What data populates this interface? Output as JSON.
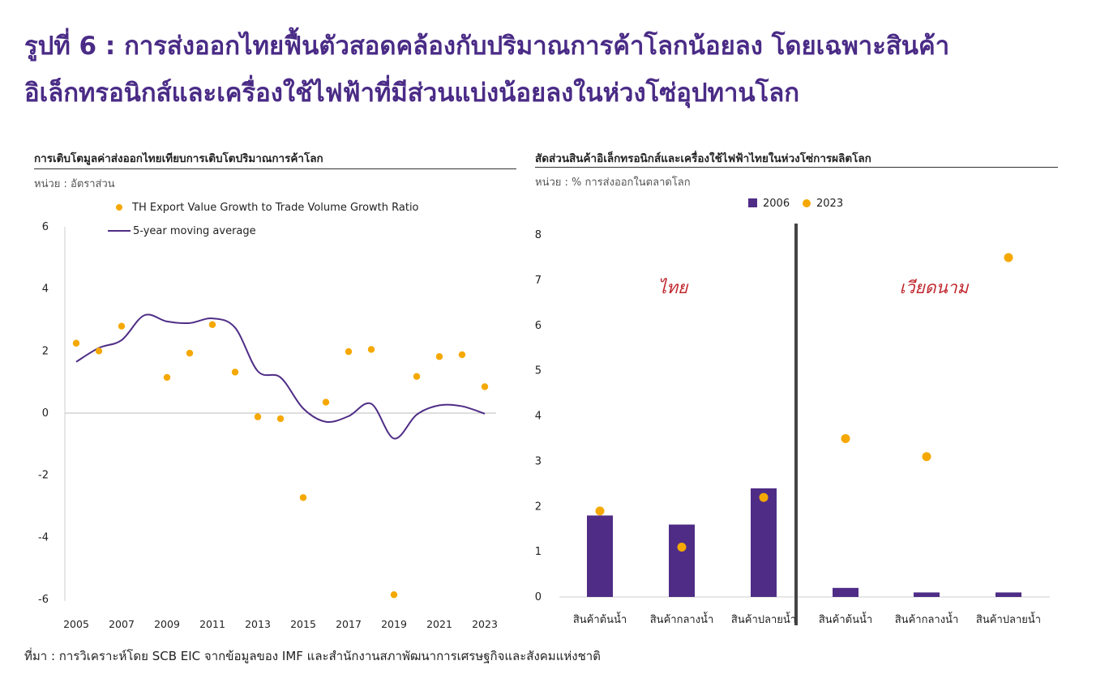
{
  "page": {
    "title_line1": "รูปที่ 6 : การส่งออกไทยฟื้นตัวสอดคล้องกับปริมาณการค้าโลกน้อยลง โดยเฉพาะสินค้า",
    "title_line2": "อิเล็กทรอนิกส์และเครื่องใช้ไฟฟ้าที่มีส่วนแบ่งน้อยลงในห่วงโซ่อุปทานโลก",
    "source": "ที่มา : การวิเคราะห์โดย SCB EIC จากข้อมูลของ IMF และสำนักงานสภาพัฒนาการเศรษฐกิจและสังคมแห่งชาติ"
  },
  "colors": {
    "title": "#4a2b86",
    "purple": "#4f2d86",
    "orange": "#f5a800",
    "country_label": "#c0272d"
  },
  "chart_data": [
    {
      "type": "scatter",
      "title": "การเติบโตมูลค่าส่งออกไทยเทียบการเติบโตปริมาณการค้าโลก",
      "unit": "หน่วย : อัตราส่วน",
      "x": [
        2005,
        2006,
        2007,
        2008,
        2009,
        2010,
        2011,
        2012,
        2013,
        2014,
        2015,
        2016,
        2017,
        2018,
        2019,
        2020,
        2021,
        2022,
        2023
      ],
      "x_tick_labels": [
        "2005",
        "2007",
        "2009",
        "2011",
        "2013",
        "2015",
        "2017",
        "2019",
        "2021",
        "2023"
      ],
      "y_ticks": [
        "6",
        "4",
        "2",
        "0",
        "-2",
        "-4",
        "-6"
      ],
      "ylim": [
        -6,
        6
      ],
      "series": [
        {
          "name": "TH Export Value Growth to Trade Volume Growth Ratio",
          "kind": "scatter",
          "values": [
            2.25,
            2.0,
            2.8,
            null,
            1.15,
            1.93,
            2.85,
            1.32,
            -0.12,
            -0.18,
            -2.72,
            0.35,
            1.98,
            2.05,
            -5.85,
            1.18,
            1.82,
            1.88,
            0.85
          ]
        },
        {
          "name": "5-year moving average",
          "kind": "line",
          "values": [
            1.65,
            2.1,
            2.35,
            3.15,
            2.95,
            2.9,
            3.05,
            2.75,
            1.35,
            1.15,
            0.15,
            -0.28,
            -0.1,
            0.3,
            -0.82,
            -0.05,
            0.25,
            0.22,
            -0.02
          ]
        }
      ]
    },
    {
      "type": "bar",
      "title": "สัดส่วนสินค้าอิเล็กทรอนิกส์และเครื่องใช้ไฟฟ้าไทยในห่วงโซ่การผลิตโลก",
      "unit": "หน่วย : % การส่งออกในตลาดโลก",
      "categories": [
        "สินค้าต้นน้ำ",
        "สินค้ากลางน้ำ",
        "สินค้าปลายน้ำ",
        "สินค้าต้นน้ำ",
        "สินค้ากลางน้ำ",
        "สินค้าปลายน้ำ"
      ],
      "groups": [
        "ไทย",
        "เวียดนาม"
      ],
      "y_ticks": [
        "8",
        "7",
        "6",
        "5",
        "4",
        "3",
        "2",
        "1",
        "0"
      ],
      "ylim": [
        0,
        8
      ],
      "series": [
        {
          "name": "2006",
          "kind": "bar",
          "values": [
            1.8,
            1.6,
            2.4,
            0.2,
            0.1,
            0.1
          ]
        },
        {
          "name": "2023",
          "kind": "dot",
          "values": [
            1.9,
            1.1,
            2.2,
            3.5,
            3.1,
            7.5
          ]
        }
      ]
    }
  ]
}
